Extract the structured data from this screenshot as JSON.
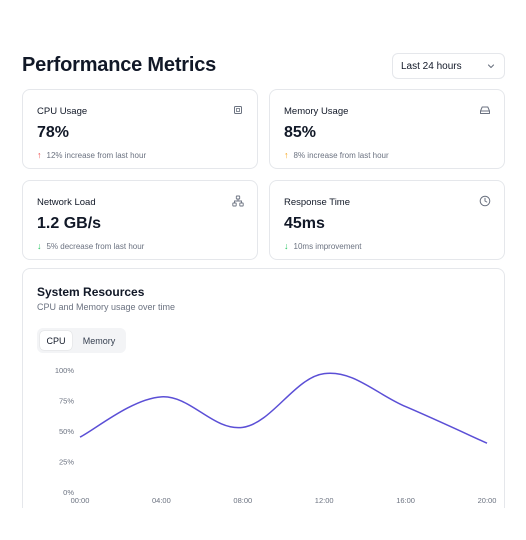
{
  "header": {
    "title": "Performance Metrics",
    "range_selected": "Last 24 hours"
  },
  "metrics": [
    {
      "label": "CPU Usage",
      "value": "78%",
      "sub": "12% increase from last hour",
      "trend": "up",
      "trend_color": "#ef4444",
      "icon": "cpu-icon"
    },
    {
      "label": "Memory Usage",
      "value": "85%",
      "sub": "8% increase from last hour",
      "trend": "up",
      "trend_color": "#f59e0b",
      "icon": "hard-drive-icon"
    },
    {
      "label": "Network Load",
      "value": "1.2 GB/s",
      "sub": "5% decrease from last hour",
      "trend": "down",
      "trend_color": "#22c55e",
      "icon": "network-icon"
    },
    {
      "label": "Response Time",
      "value": "45ms",
      "sub": "10ms improvement",
      "trend": "down",
      "trend_color": "#22c55e",
      "icon": "clock-icon"
    }
  ],
  "resources": {
    "title": "System Resources",
    "subtitle": "CPU and Memory usage over time",
    "tabs": [
      {
        "label": "CPU",
        "active": true
      },
      {
        "label": "Memory",
        "active": false
      }
    ]
  },
  "chart_data": {
    "type": "line",
    "x": [
      "00:00",
      "04:00",
      "08:00",
      "12:00",
      "16:00",
      "20:00"
    ],
    "series": [
      {
        "values": [
          45,
          78,
          53,
          97,
          70,
          40
        ],
        "color": "#5b4fd6"
      }
    ],
    "y_ticks": [
      "100%",
      "75%",
      "50%",
      "25%",
      "0%"
    ],
    "ylim": [
      0,
      100
    ],
    "grid": false
  },
  "colors": {
    "accent": "#5b4fd6",
    "border": "#e5e7eb",
    "muted": "#6b7280"
  }
}
